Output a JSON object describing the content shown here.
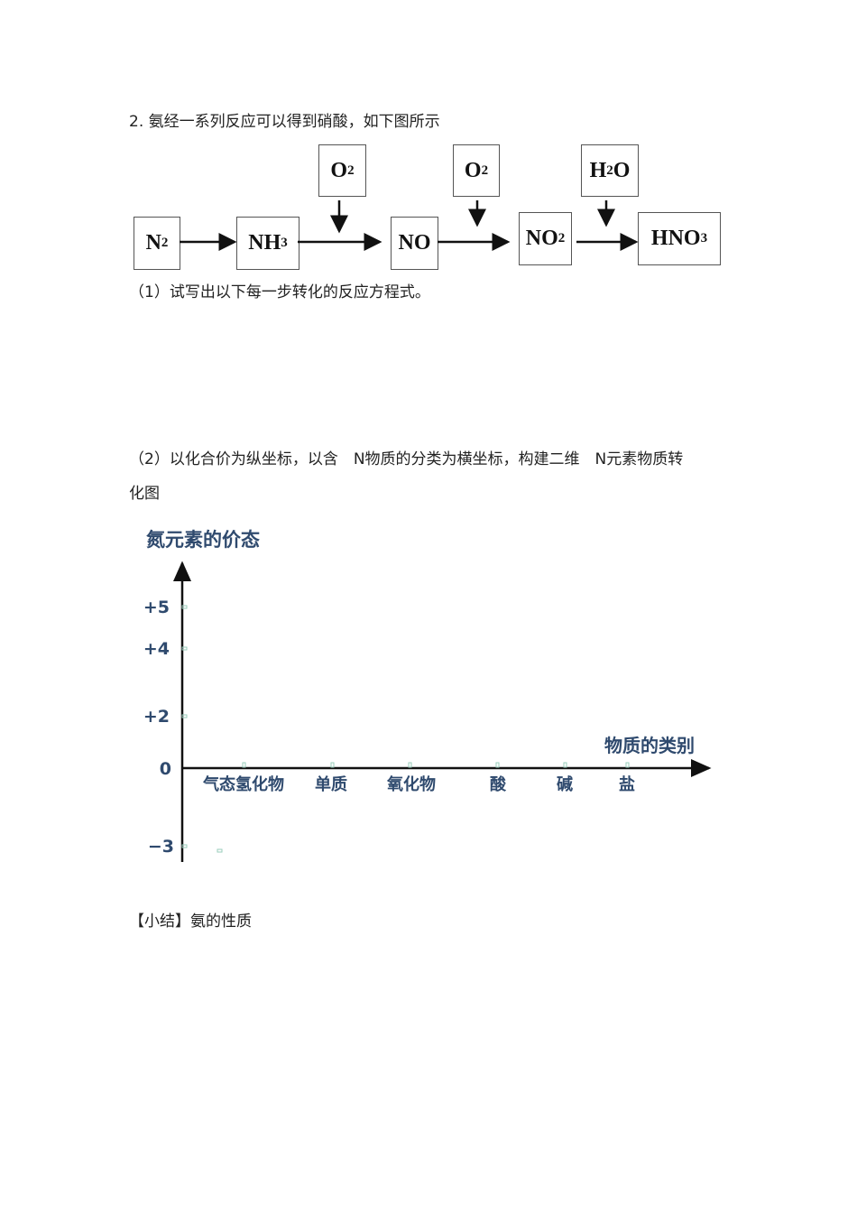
{
  "question_title": "2.  氨经一系列反应可以得到硝酸，如下图所示",
  "reaction_diagram": {
    "species": [
      {
        "base": "N",
        "sub": "2",
        "tail": ""
      },
      {
        "base": "NH",
        "sub": "3",
        "tail": ""
      },
      {
        "base": "NO",
        "sub": "",
        "tail": ""
      },
      {
        "base": "NO",
        "sub": "2",
        "tail": ""
      },
      {
        "base": "HNO",
        "sub": "3",
        "tail": ""
      }
    ],
    "reagents": [
      {
        "base": "O",
        "sub": "2",
        "tail": ""
      },
      {
        "base": "O",
        "sub": "2",
        "tail": ""
      },
      {
        "base": "H",
        "sub": "2",
        "tail": "O"
      }
    ]
  },
  "part1": "（1）试写出以下每一步转化的反应方程式。",
  "part2_line1": "（2）以化合价为纵坐标，以含　N物质的分类为横坐标，构建二维　N元素物质转",
  "part2_line2": "化图",
  "chart_data": {
    "type": "scatter",
    "ylabel": "氮元素的价态",
    "xlabel": "物质的类别",
    "y_ticks": [
      "+5",
      "+4",
      "+2",
      "0",
      "−3"
    ],
    "categories": [
      "气态氢化物",
      "单质",
      "氧化物",
      "酸",
      "碱",
      "盐"
    ],
    "values": [],
    "label_color": "#2f4a6e"
  },
  "summary": "【小结】氨的性质"
}
